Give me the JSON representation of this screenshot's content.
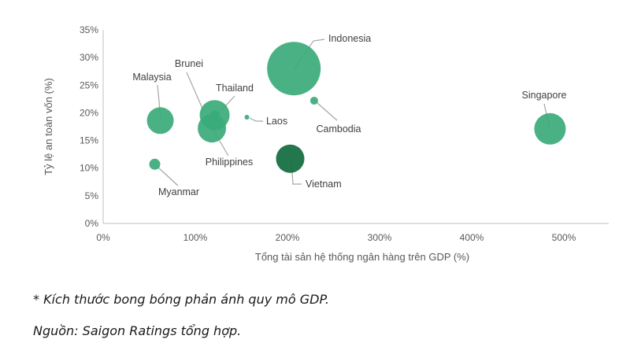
{
  "chart_data": {
    "type": "scatter",
    "subtype": "bubble",
    "xlabel": "Tổng tài sản hệ thống ngân hàng trên GDP (%)",
    "ylabel": "Tỷ lệ an toàn vốn (%)",
    "xlim": [
      0,
      550
    ],
    "ylim": [
      0,
      35
    ],
    "x_ticks": [
      "0%",
      "100%",
      "200%",
      "300%",
      "400%",
      "500%"
    ],
    "y_ticks": [
      "0%",
      "5%",
      "10%",
      "15%",
      "20%",
      "25%",
      "30%",
      "35%"
    ],
    "grid": false,
    "legend": null,
    "points": [
      {
        "label": "Malaysia",
        "x": 62,
        "y": 18.6,
        "size": 17,
        "color": "#3aaa7a"
      },
      {
        "label": "Brunei",
        "x": 121,
        "y": 19.6,
        "size": 6,
        "color": "#3aaa7a"
      },
      {
        "label": "Thailand",
        "x": 121,
        "y": 19.6,
        "size": 19,
        "color": "#3aaa7a"
      },
      {
        "label": "Philippines",
        "x": 118,
        "y": 17.2,
        "size": 18,
        "color": "#3aaa7a"
      },
      {
        "label": "Laos",
        "x": 156,
        "y": 19.2,
        "size": 3,
        "color": "#3aaa7a"
      },
      {
        "label": "Myanmar",
        "x": 56,
        "y": 10.7,
        "size": 7,
        "color": "#3aaa7a"
      },
      {
        "label": "Indonesia",
        "x": 207,
        "y": 28.0,
        "size": 34,
        "color": "#3aaa7a"
      },
      {
        "label": "Cambodia",
        "x": 229,
        "y": 22.2,
        "size": 5,
        "color": "#3aaa7a"
      },
      {
        "label": "Vietnam",
        "x": 203,
        "y": 11.7,
        "size": 18,
        "color": "#0f6b3d"
      },
      {
        "label": "Singapore",
        "x": 485,
        "y": 17.1,
        "size": 20,
        "color": "#3aaa7a"
      }
    ],
    "annotations": [
      "* Kích thước bong bóng phản ánh quy mô GDP."
    ]
  },
  "notes": {
    "bubble_size": "* Kích thước bong bóng phản ánh quy mô GDP.",
    "source": "Nguồn: Saigon Ratings tổng hợp."
  }
}
